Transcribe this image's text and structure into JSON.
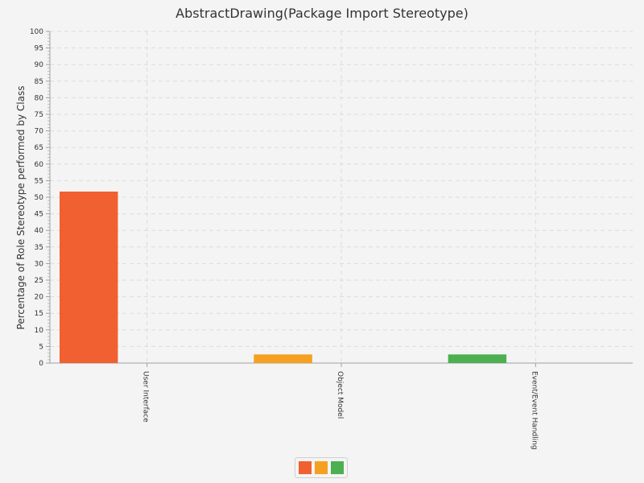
{
  "chart_data": {
    "type": "bar",
    "title": "AbstractDrawing(Package Import Stereotype)",
    "xlabel": "",
    "ylabel": "Percentage of Role Stereotype performed by Class",
    "ylim": [
      0,
      100
    ],
    "ytick_step": 5,
    "grid": true,
    "legend_position": "bottom-center",
    "categories": [
      "User Interface",
      "Object Model",
      "Event/Event Handling"
    ],
    "series": [
      {
        "color": "#f06030",
        "values": [
          51.7,
          0,
          0
        ]
      },
      {
        "color": "#f5a020",
        "values": [
          0,
          2.6,
          0
        ]
      },
      {
        "color": "#4caf50",
        "values": [
          0,
          0,
          2.6
        ]
      }
    ]
  }
}
